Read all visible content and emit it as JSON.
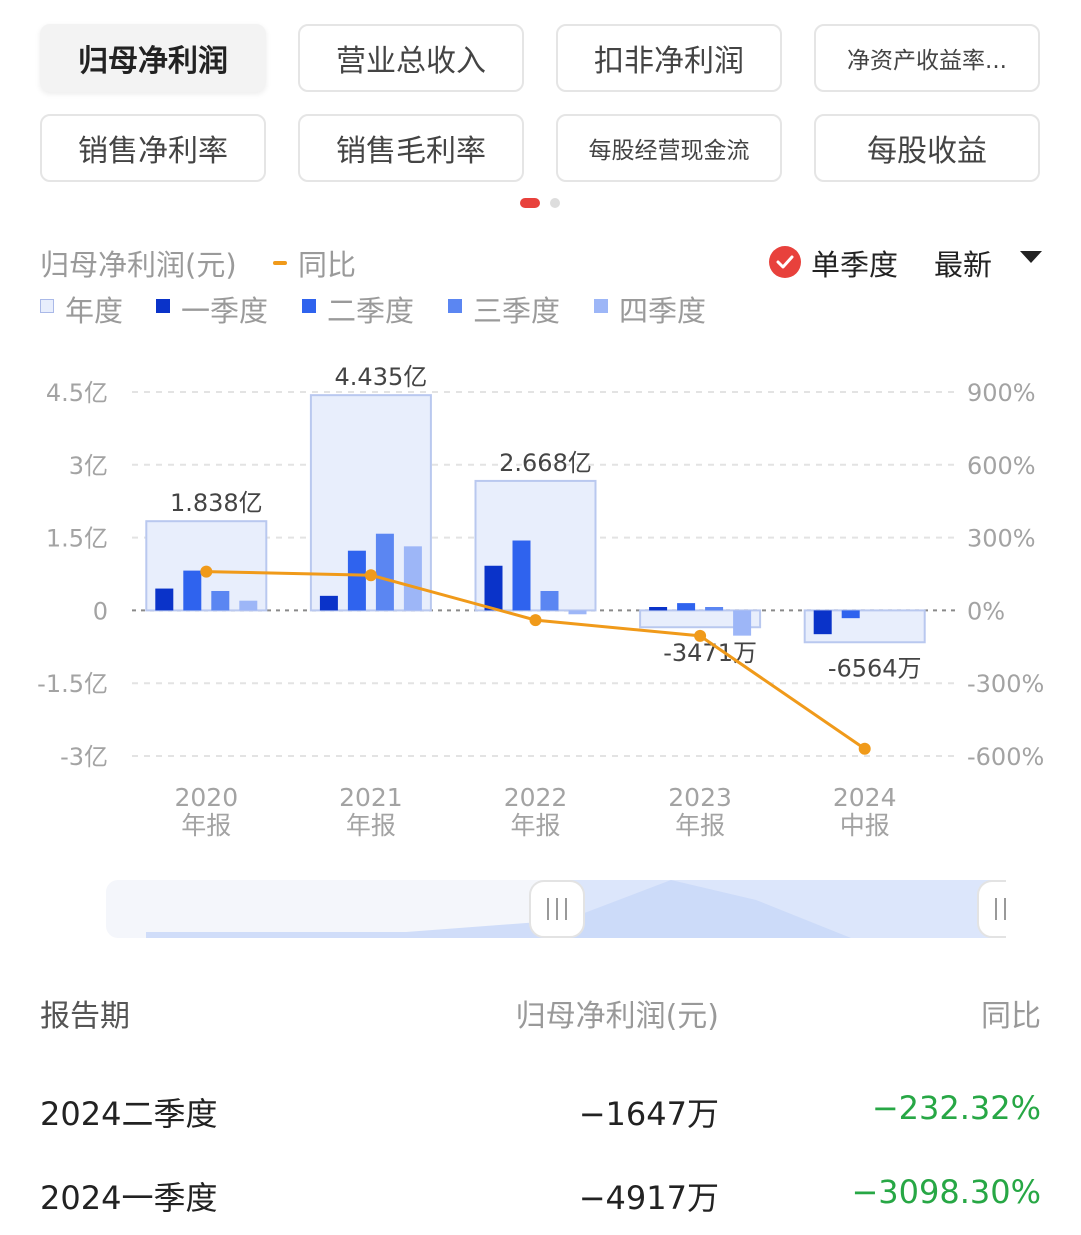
{
  "tabs": [
    {
      "label": "归母净利润",
      "active": true
    },
    {
      "label": "营业总收入",
      "active": false
    },
    {
      "label": "扣非净利润",
      "active": false
    },
    {
      "label": "净资产收益率...",
      "active": false
    },
    {
      "label": "销售净利率",
      "active": false
    },
    {
      "label": "销售毛利率",
      "active": false
    },
    {
      "label": "每股经营现金流",
      "active": false
    },
    {
      "label": "每股收益",
      "active": false
    }
  ],
  "pager": {
    "pages": 2,
    "current": 1,
    "active_color": "#e8413c"
  },
  "header": {
    "metric_label": "归母净利润(元)",
    "yoy_label": "同比",
    "single_quarter_label": "单季度",
    "single_quarter_checked": true,
    "sort_label": "最新"
  },
  "legend": [
    {
      "label": "年度",
      "color": "#e8eefc"
    },
    {
      "label": "一季度",
      "color": "#0a33c9"
    },
    {
      "label": "二季度",
      "color": "#2f63ee"
    },
    {
      "label": "三季度",
      "color": "#5b86f2"
    },
    {
      "label": "四季度",
      "color": "#9db6f7"
    }
  ],
  "chart_data": {
    "type": "bar",
    "categories": [
      [
        "2020",
        "年报"
      ],
      [
        "2021",
        "年报"
      ],
      [
        "2022",
        "年报"
      ],
      [
        "2023",
        "年报"
      ],
      [
        "2024",
        "中报"
      ]
    ],
    "annual_label_texts": [
      "1.838亿",
      "4.435亿",
      "2.668亿",
      "-3471万",
      "-6564万"
    ],
    "series": [
      {
        "name": "年度",
        "values": [
          1.838,
          4.435,
          2.668,
          -0.3471,
          -0.6564
        ],
        "color": "#e8eefc"
      },
      {
        "name": "一季度",
        "values": [
          0.45,
          0.3,
          0.92,
          0.07,
          -0.49
        ],
        "color": "#0a33c9"
      },
      {
        "name": "二季度",
        "values": [
          0.82,
          1.23,
          1.44,
          0.15,
          -0.16
        ],
        "color": "#2f63ee"
      },
      {
        "name": "三季度",
        "values": [
          0.4,
          1.58,
          0.4,
          0.07,
          null
        ],
        "color": "#5b86f2"
      },
      {
        "name": "四季度",
        "values": [
          0.2,
          1.32,
          -0.08,
          -0.52,
          null
        ],
        "color": "#9db6f7"
      }
    ],
    "yoy": {
      "name": "同比",
      "values": [
        160,
        145,
        -40,
        -105,
        -570
      ],
      "color": "#f09a1a"
    },
    "y_left": {
      "ticks": [
        "4.5亿",
        "3亿",
        "1.5亿",
        "0",
        "-1.5亿",
        "-3亿"
      ],
      "tick_values": [
        4.5,
        3,
        1.5,
        0,
        -1.5,
        -3
      ],
      "range": [
        -3,
        4.5
      ]
    },
    "y_right": {
      "ticks": [
        "900%",
        "600%",
        "300%",
        "0%",
        "-300%",
        "-600%"
      ],
      "tick_values": [
        900,
        600,
        300,
        0,
        -300,
        -600
      ],
      "range": [
        -600,
        900
      ]
    },
    "grid": true
  },
  "range_slider": {
    "start": 0.5,
    "end": 1.0
  },
  "table": {
    "headers": [
      "报告期",
      "归母净利润(元)",
      "同比"
    ],
    "rows": [
      {
        "period": "2024二季度",
        "value": "−1647万",
        "yoy": "−232.32%"
      },
      {
        "period": "2024一季度",
        "value": "−4917万",
        "yoy": "−3098.30%"
      }
    ]
  }
}
